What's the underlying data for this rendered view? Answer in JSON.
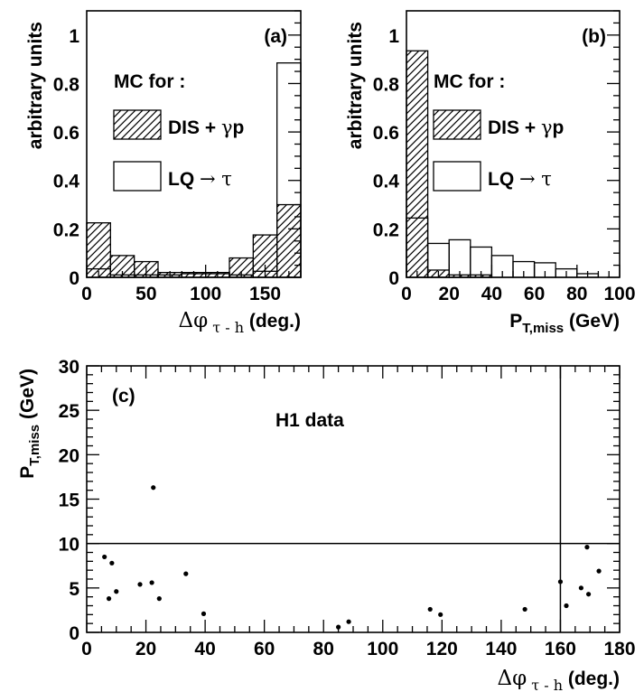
{
  "chart_data": [
    {
      "panel": "(a)",
      "type": "histogram",
      "xlabel_symbol": "Δφ",
      "xlabel_sub": "τ - h",
      "xlabel_unit": "(deg.)",
      "ylabel": "arbitrary units",
      "xlim": [
        0,
        180
      ],
      "ylim": [
        0,
        1.1
      ],
      "xticks": [
        "0",
        "50",
        "100",
        "150"
      ],
      "yticks": [
        "0",
        "0.2",
        "0.4",
        "0.6",
        "0.8",
        "1"
      ],
      "header": "MC for :",
      "bin_edges": [
        0,
        20,
        40,
        60,
        80,
        100,
        120,
        140,
        160,
        180
      ],
      "series": [
        {
          "name": "DIS + γp",
          "style": "hatched",
          "values": [
            0.225,
            0.09,
            0.065,
            0.02,
            0.02,
            0.02,
            0.08,
            0.175,
            0.3
          ]
        },
        {
          "name": "LQ → τ",
          "style": "open",
          "values": [
            0.035,
            0.01,
            0.01,
            0.01,
            0.015,
            0.015,
            0.01,
            0.025,
            0.885
          ]
        }
      ]
    },
    {
      "panel": "(b)",
      "type": "histogram",
      "xlabel": "P",
      "xlabel_sub": "T,miss",
      "xlabel_unit": "(GeV)",
      "ylabel": "arbitrary units",
      "xlim": [
        0,
        100
      ],
      "ylim": [
        0,
        1.1
      ],
      "xticks": [
        "0",
        "20",
        "40",
        "60",
        "80",
        "100"
      ],
      "yticks": [
        "0",
        "0.2",
        "0.4",
        "0.6",
        "0.8",
        "1"
      ],
      "header": "MC for :",
      "bin_edges": [
        0,
        10,
        20,
        30,
        40,
        50,
        60,
        70,
        80,
        90
      ],
      "series": [
        {
          "name": "DIS + γp",
          "style": "hatched",
          "values": [
            0.935,
            0.03,
            0.01,
            0.01,
            0.0,
            0.0,
            0.0,
            0.0,
            0.0
          ]
        },
        {
          "name": "LQ → τ",
          "style": "open",
          "values": [
            0.245,
            0.14,
            0.155,
            0.125,
            0.09,
            0.065,
            0.06,
            0.035,
            0.015
          ]
        }
      ]
    },
    {
      "panel": "(c)",
      "type": "scatter",
      "title": "H1 data",
      "xlabel_symbol": "Δφ",
      "xlabel_sub": "τ - h",
      "xlabel_unit": "(deg.)",
      "ylabel": "P",
      "ylabel_sub": "T,miss",
      "ylabel_unit": "(GeV)",
      "xlim": [
        0,
        180
      ],
      "ylim": [
        0,
        30
      ],
      "xticks": [
        "0",
        "20",
        "40",
        "60",
        "80",
        "100",
        "120",
        "140",
        "160",
        "180"
      ],
      "yticks": [
        "0",
        "5",
        "10",
        "15",
        "20",
        "25",
        "30"
      ],
      "cut_lines": {
        "x": 160,
        "y": 10
      },
      "points": [
        [
          6,
          8.5
        ],
        [
          7.5,
          3.8
        ],
        [
          8.5,
          7.8
        ],
        [
          10,
          4.6
        ],
        [
          18,
          5.4
        ],
        [
          22,
          5.6
        ],
        [
          22.5,
          16.3
        ],
        [
          24.5,
          3.8
        ],
        [
          33.5,
          6.6
        ],
        [
          39.5,
          2.1
        ],
        [
          85,
          0.6
        ],
        [
          88.5,
          1.2
        ],
        [
          116,
          2.6
        ],
        [
          119.5,
          2.0
        ],
        [
          148,
          2.6
        ],
        [
          160,
          5.7
        ],
        [
          162,
          3.0
        ],
        [
          167,
          5.0
        ],
        [
          169,
          9.6
        ],
        [
          169.5,
          4.3
        ],
        [
          173,
          6.9
        ]
      ]
    }
  ]
}
